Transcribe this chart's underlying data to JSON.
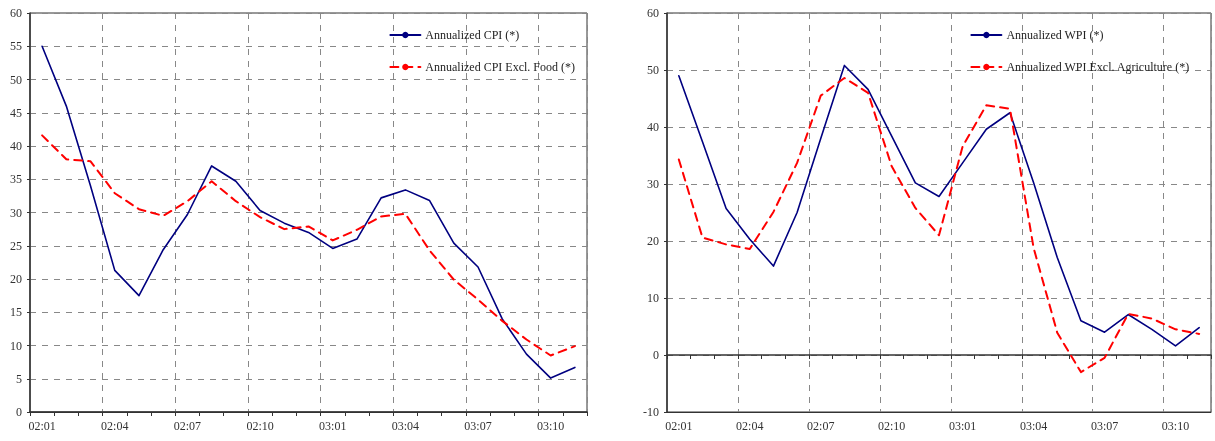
{
  "chart_data": [
    {
      "type": "line",
      "categories": [
        "02:01",
        null,
        null,
        "02:04",
        null,
        null,
        "02:07",
        null,
        null,
        "02:10",
        null,
        null,
        "03:01",
        null,
        null,
        "03:04",
        null,
        null,
        "03:07",
        null,
        null,
        "03:10",
        null
      ],
      "series": [
        {
          "name": "Annualized CPI (*)",
          "color": "#000080",
          "line_style": "solid",
          "values": [
            55,
            46.0,
            34,
            21.3,
            17.5,
            24.4,
            29.7,
            37.0,
            34.7,
            30.3,
            28.4,
            27.0,
            24.6,
            26.0,
            32.2,
            33.4,
            31.8,
            25.4,
            21.8,
            14,
            8.7,
            5.1,
            6.7
          ]
        },
        {
          "name": "Annualized CPI Excl. Food (*)",
          "color": "#ff0000",
          "line_style": "dashed",
          "values": [
            41.6,
            38.0,
            37.7,
            32.9,
            30.5,
            29.5,
            31.7,
            34.7,
            31.7,
            29.3,
            27.5,
            27.9,
            25.8,
            27.4,
            29.4,
            29.8,
            24.3,
            19.9,
            16.9,
            13.7,
            10.9,
            8.5,
            9.9
          ]
        }
      ],
      "ylim": [
        0,
        60
      ],
      "yticks": [
        0,
        5,
        10,
        15,
        20,
        25,
        30,
        35,
        40,
        45,
        50,
        55,
        60
      ],
      "grid": true,
      "legend": "top right"
    },
    {
      "type": "line",
      "categories": [
        "02:01",
        null,
        null,
        "02:04",
        null,
        null,
        "02:07",
        null,
        null,
        "02:10",
        null,
        null,
        "03:01",
        null,
        null,
        "03:04",
        null,
        null,
        "03:07",
        null,
        null,
        "03:10",
        null
      ],
      "series": [
        {
          "name": "Annualized WPI (*)",
          "color": "#000080",
          "line_style": "solid",
          "values": [
            49.0,
            37.4,
            25.7,
            20.3,
            15.6,
            25.0,
            38,
            50.8,
            46.6,
            38.4,
            30.2,
            27.8,
            33.7,
            39.6,
            42.5,
            30.2,
            17.1,
            6.0,
            4.0,
            7.1,
            4.5,
            1.6,
            4.8
          ]
        },
        {
          "name": "Annualized WPI Excl. Agriculture (*)",
          "color": "#ff0000",
          "line_style": "dashed",
          "values": [
            34.3,
            20.6,
            19.4,
            18.6,
            25.1,
            33.7,
            45.5,
            48.6,
            46.0,
            33.1,
            25.8,
            21.0,
            36.6,
            43.8,
            43.2,
            18.8,
            3.9,
            -3.0,
            -0.5,
            7.2,
            6.4,
            4.5,
            3.7
          ]
        }
      ],
      "ylim": [
        -10,
        60
      ],
      "yticks": [
        -10,
        0,
        10,
        20,
        30,
        40,
        50,
        60
      ],
      "grid": true,
      "legend": "top right"
    }
  ]
}
